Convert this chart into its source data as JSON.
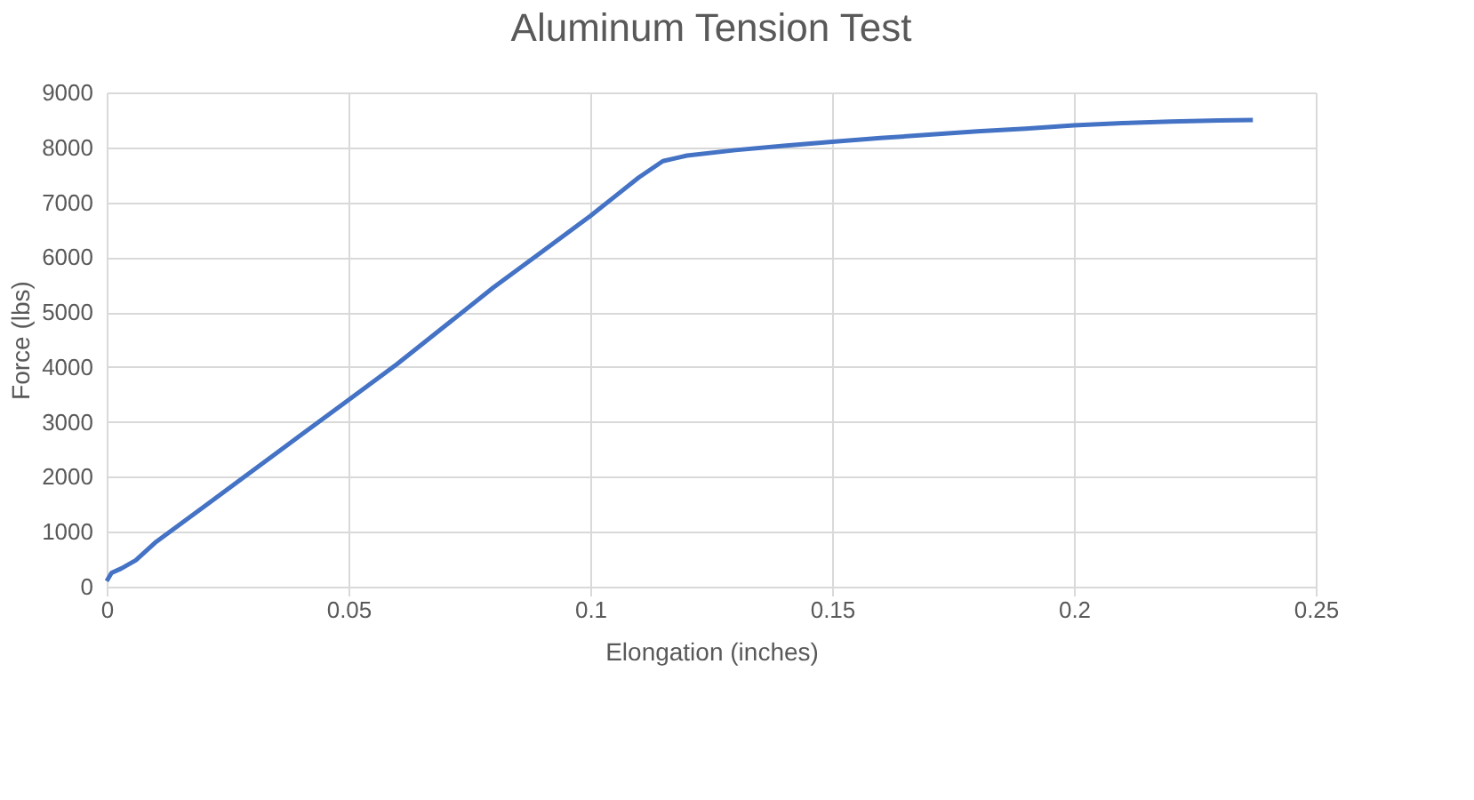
{
  "chart_data": {
    "type": "line",
    "title": "Aluminum Tension Test",
    "xlabel": "Elongation (inches)",
    "ylabel": "Force (lbs)",
    "x": [
      0,
      0.001,
      0.003,
      0.006,
      0.01,
      0.02,
      0.03,
      0.04,
      0.05,
      0.06,
      0.07,
      0.08,
      0.09,
      0.1,
      0.105,
      0.11,
      0.115,
      0.12,
      0.13,
      0.14,
      0.15,
      0.16,
      0.17,
      0.18,
      0.19,
      0.2,
      0.21,
      0.22,
      0.23,
      0.237
    ],
    "series": [
      {
        "color": "#4472c4",
        "values": [
          100,
          250,
          330,
          480,
          800,
          1450,
          2100,
          2750,
          3400,
          4050,
          4750,
          5450,
          6100,
          6750,
          7100,
          7450,
          7750,
          7850,
          7950,
          8030,
          8100,
          8170,
          8230,
          8290,
          8340,
          8400,
          8440,
          8470,
          8490,
          8500
        ]
      }
    ],
    "xlim": [
      0,
      0.25
    ],
    "xticks": [
      0,
      0.05,
      0.1,
      0.15,
      0.2,
      0.25
    ],
    "ylim": [
      0,
      9000
    ],
    "yticks": [
      0,
      1000,
      2000,
      3000,
      4000,
      5000,
      6000,
      7000,
      8000,
      9000
    ],
    "grid": true,
    "line_style": "solid",
    "marker": "none"
  }
}
